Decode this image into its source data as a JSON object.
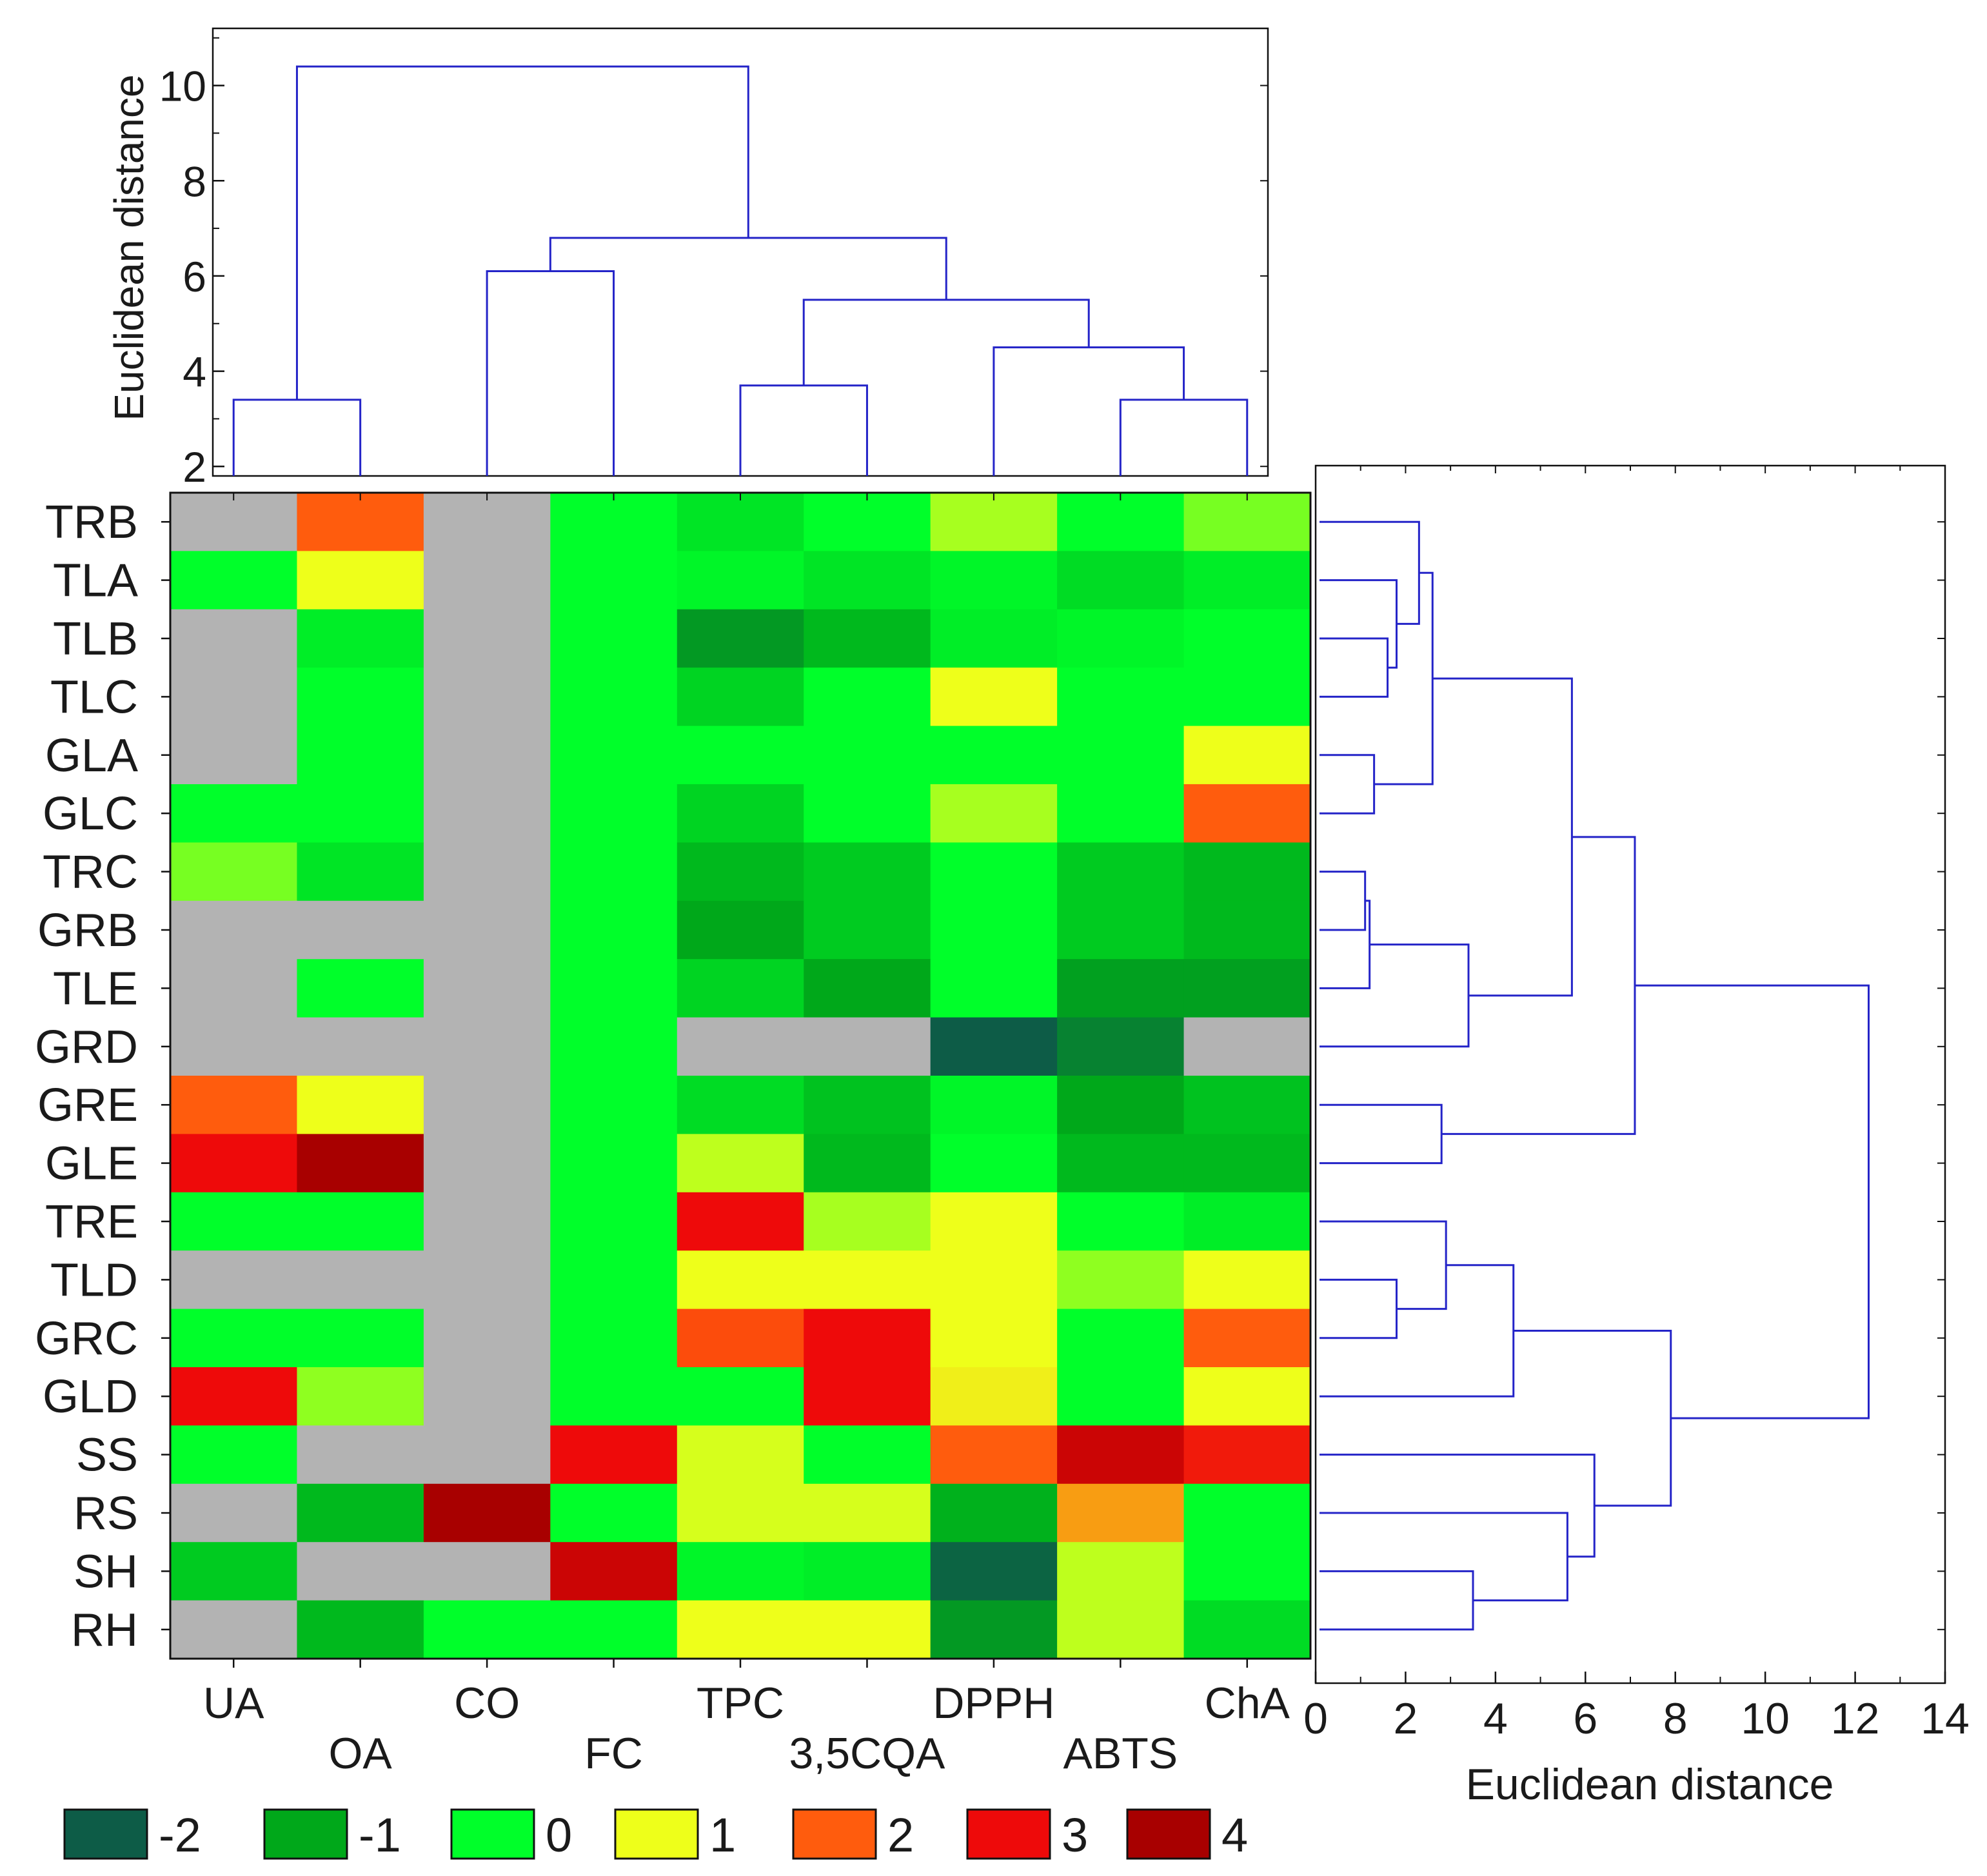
{
  "chart_data": [
    {
      "type": "heatmap",
      "title": "",
      "rows": [
        "TRB",
        "TLA",
        "TLB",
        "TLC",
        "GLA",
        "GLC",
        "TRC",
        "GRB",
        "TLE",
        "GRD",
        "GRE",
        "GLE",
        "TRE",
        "TLD",
        "GRC",
        "GLD",
        "SS",
        "RS",
        "SH",
        "RH"
      ],
      "columns": [
        "UA",
        "OA",
        "CO",
        "FC",
        "TPC",
        "3,5CQA",
        "DPPH",
        "ABTS",
        "ChA"
      ],
      "values": [
        [
          null,
          2,
          null,
          0,
          -0.3,
          0,
          0.7,
          0,
          0.5
        ],
        [
          0,
          1,
          null,
          0,
          -0.1,
          -0.3,
          -0.1,
          -0.4,
          -0.2
        ],
        [
          null,
          -0.2,
          null,
          0,
          -1.2,
          -0.8,
          -0.2,
          -0.1,
          0
        ],
        [
          null,
          0,
          null,
          0,
          -0.5,
          0,
          1,
          0,
          0
        ],
        [
          null,
          0,
          null,
          0,
          0,
          0,
          0,
          0,
          1
        ],
        [
          0,
          0,
          null,
          0,
          -0.5,
          0,
          0.7,
          0,
          2
        ],
        [
          0.5,
          -0.3,
          null,
          0,
          -0.8,
          -0.6,
          0,
          -0.6,
          -0.8
        ],
        [
          null,
          null,
          null,
          0,
          -1.0,
          -0.6,
          0,
          -0.6,
          -0.8
        ],
        [
          null,
          0,
          null,
          0,
          -0.5,
          -1.0,
          0,
          -1.1,
          -1.1
        ],
        [
          null,
          null,
          null,
          0,
          null,
          null,
          -2,
          -1.5,
          null
        ],
        [
          2,
          1,
          null,
          0,
          -0.4,
          -0.7,
          -0.1,
          -1.0,
          -0.7
        ],
        [
          3,
          4,
          null,
          0,
          0.8,
          -0.8,
          0,
          -0.8,
          -0.8
        ],
        [
          0,
          0,
          null,
          0,
          3,
          0.7,
          1,
          0,
          -0.2
        ],
        [
          null,
          null,
          null,
          0,
          1,
          1,
          1,
          0.6,
          1
        ],
        [
          0,
          0,
          null,
          0,
          2.2,
          3,
          1,
          0,
          2
        ],
        [
          3,
          0.6,
          null,
          0,
          0,
          3,
          1.1,
          0,
          1
        ],
        [
          0,
          null,
          null,
          3,
          0.9,
          0,
          2,
          3.5,
          2.8
        ],
        [
          null,
          -0.8,
          4.5,
          0,
          0.9,
          0.9,
          -0.9,
          1.6,
          0
        ],
        [
          -0.6,
          null,
          null,
          3.5,
          -0.1,
          -0.2,
          -1.9,
          0.8,
          0
        ],
        [
          null,
          -0.8,
          0,
          0,
          1,
          1,
          -1.2,
          0.8,
          -0.4
        ]
      ],
      "missing_value_color": "#b3b3b3",
      "xlabel": "",
      "ylabel": "",
      "legend": {
        "items": [
          {
            "label": "-2",
            "value": -2,
            "color": "#0d5c47"
          },
          {
            "label": "-1",
            "value": -1,
            "color": "#00a81a"
          },
          {
            "label": "0",
            "value": 0,
            "color": "#00ff2a"
          },
          {
            "label": "1",
            "value": 1,
            "color": "#eeff1a"
          },
          {
            "label": "2",
            "value": 2,
            "color": "#ff5c0d"
          },
          {
            "label": "3",
            "value": 3,
            "color": "#ee0a0a"
          },
          {
            "label": "4",
            "value": 4,
            "color": "#a80000"
          }
        ],
        "placement": "bottom-left"
      }
    },
    {
      "type": "dendrogram",
      "orientation": "top",
      "leaves": [
        "UA",
        "OA",
        "CO",
        "FC",
        "TPC",
        "3,5CQA",
        "DPPH",
        "ABTS",
        "ChA"
      ],
      "ylabel": "Euclidean distance",
      "yticks": [
        2,
        4,
        6,
        8,
        10
      ],
      "ylim": [
        1.8,
        11.2
      ],
      "merges": [
        {
          "a": 0,
          "b": 1,
          "height": 3.4
        },
        {
          "a": 2,
          "b": 3,
          "height": 6.1
        },
        {
          "a": 4,
          "b": 5,
          "height": 3.7
        },
        {
          "a": 7,
          "b": 8,
          "height": 3.4
        },
        {
          "a": 6,
          "b": 12,
          "height": 4.5
        },
        {
          "a": 11,
          "b": 13,
          "height": 5.5
        },
        {
          "a": 10,
          "b": 14,
          "height": 6.8
        },
        {
          "a": 9,
          "b": 15,
          "height": 10.4
        }
      ]
    },
    {
      "type": "dendrogram",
      "orientation": "right",
      "leaves": [
        "TRB",
        "TLA",
        "TLB",
        "TLC",
        "GLA",
        "GLC",
        "TRC",
        "GRB",
        "TLE",
        "GRD",
        "GRE",
        "GLE",
        "TRE",
        "TLD",
        "GRC",
        "GLD",
        "SS",
        "RS",
        "SH",
        "RH"
      ],
      "xlabel": "Euclidean distance",
      "xticks": [
        0,
        2,
        4,
        6,
        8,
        10,
        12,
        14
      ],
      "xlim": [
        0,
        14
      ],
      "merges": [
        {
          "a": 2,
          "b": 3,
          "height": 1.6
        },
        {
          "a": 1,
          "b": 20,
          "height": 1.8
        },
        {
          "a": 0,
          "b": 21,
          "height": 2.3
        },
        {
          "a": 4,
          "b": 5,
          "height": 1.3
        },
        {
          "a": 22,
          "b": 23,
          "height": 2.6
        },
        {
          "a": 6,
          "b": 7,
          "height": 1.1
        },
        {
          "a": 25,
          "b": 8,
          "height": 1.2
        },
        {
          "a": 26,
          "b": 9,
          "height": 3.4
        },
        {
          "a": 24,
          "b": 27,
          "height": 5.7
        },
        {
          "a": 10,
          "b": 11,
          "height": 2.8
        },
        {
          "a": 28,
          "b": 29,
          "height": 7.1
        },
        {
          "a": 13,
          "b": 14,
          "height": 1.8
        },
        {
          "a": 12,
          "b": 31,
          "height": 2.9
        },
        {
          "a": 32,
          "b": 15,
          "height": 4.4
        },
        {
          "a": 18,
          "b": 19,
          "height": 3.5
        },
        {
          "a": 17,
          "b": 34,
          "height": 5.6
        },
        {
          "a": 16,
          "b": 35,
          "height": 6.2
        },
        {
          "a": 33,
          "b": 36,
          "height": 7.9
        },
        {
          "a": 30,
          "b": 37,
          "height": 12.3
        }
      ]
    }
  ]
}
